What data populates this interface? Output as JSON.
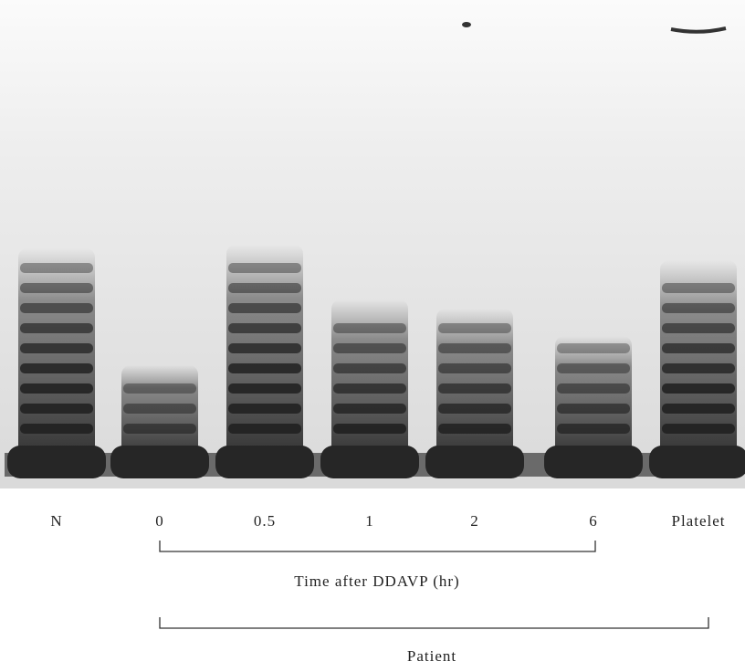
{
  "lanes": [
    {
      "label": "N"
    },
    {
      "label": "0"
    },
    {
      "label": "0.5"
    },
    {
      "label": "1"
    },
    {
      "label": "2"
    },
    {
      "label": "6"
    },
    {
      "label": "Platelet"
    }
  ],
  "brackets": [
    {
      "label": "Time after DDAVP (hr)"
    },
    {
      "label": "Patient"
    }
  ]
}
